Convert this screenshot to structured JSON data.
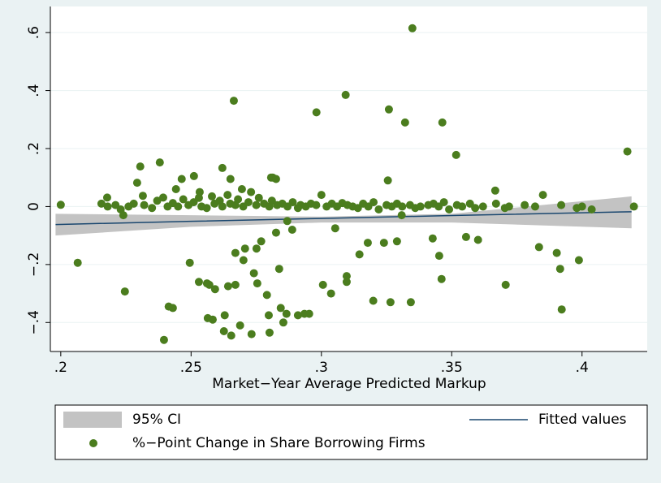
{
  "chart_data": {
    "type": "scatter",
    "x_label": "Market−Year Average Predicted Markup",
    "xlim": [
      0.196,
      0.425
    ],
    "ylim": [
      -0.5,
      0.69
    ],
    "xticks": [
      {
        "value": 0.2,
        "label": ".2"
      },
      {
        "value": 0.25,
        "label": ".25"
      },
      {
        "value": 0.3,
        "label": ".3"
      },
      {
        "value": 0.35,
        "label": ".35"
      },
      {
        "value": 0.4,
        "label": ".4"
      }
    ],
    "yticks": [
      {
        "value": -0.4,
        "label": "−.4"
      },
      {
        "value": -0.2,
        "label": "−.2"
      },
      0,
      {
        "value": 0.2,
        "label": ".2"
      },
      {
        "value": 0.4,
        "label": ".4"
      },
      {
        "value": 0.6,
        "label": ".6"
      }
    ],
    "grid": true,
    "series": [
      {
        "name": "95% CI",
        "kind": "band",
        "color": "#c3c3c3",
        "x": [
          0.198,
          0.25,
          0.3,
          0.35,
          0.419
        ],
        "lower": [
          -0.1,
          -0.07,
          -0.055,
          -0.055,
          -0.075
        ],
        "upper": [
          -0.025,
          -0.03,
          -0.035,
          -0.025,
          0.035
        ]
      },
      {
        "name": "Fitted values",
        "kind": "line",
        "color": "#1a476f",
        "x": [
          0.198,
          0.25,
          0.3,
          0.35,
          0.419
        ],
        "values": [
          -0.062,
          -0.051,
          -0.041,
          -0.031,
          -0.018
        ]
      },
      {
        "name": "%−Point Change in Share Borrowing Firms",
        "kind": "points",
        "color": "#4b7d1e",
        "x": [
          0.2,
          0.2065,
          0.2156,
          0.2178,
          0.2246,
          0.2293,
          0.2305,
          0.2315,
          0.238,
          0.2393,
          0.2396,
          0.2414,
          0.243,
          0.2442,
          0.2464,
          0.2495,
          0.2511,
          0.253,
          0.2533,
          0.2561,
          0.2564,
          0.257,
          0.2583,
          0.2592,
          0.262,
          0.2626,
          0.2629,
          0.2642,
          0.2651,
          0.2654,
          0.2664,
          0.267,
          0.267,
          0.2688,
          0.2695,
          0.2701,
          0.2707,
          0.2732,
          0.2741,
          0.2751,
          0.2754,
          0.2769,
          0.2791,
          0.2798,
          0.2801,
          0.2807,
          0.2813,
          0.2826,
          0.2826,
          0.2838,
          0.2844,
          0.2854,
          0.2866,
          0.2869,
          0.2888,
          0.291,
          0.2935,
          0.2953,
          0.2981,
          0.3006,
          0.3037,
          0.3053,
          0.3093,
          0.3097,
          0.3097,
          0.3146,
          0.3178,
          0.3199,
          0.324,
          0.3255,
          0.3259,
          0.3265,
          0.329,
          0.3308,
          0.3321,
          0.3343,
          0.3349,
          0.3427,
          0.3452,
          0.3461,
          0.3464,
          0.3517,
          0.3555,
          0.3601,
          0.3667,
          0.3704,
          0.3707,
          0.3835,
          0.3903,
          0.3916,
          0.3922,
          0.3988,
          0.4,
          0.4037,
          0.4174,
          0.4199,
          0.218,
          0.221,
          0.223,
          0.224,
          0.226,
          0.228,
          0.232,
          0.235,
          0.237,
          0.241,
          0.243,
          0.245,
          0.247,
          0.249,
          0.251,
          0.253,
          0.254,
          0.256,
          0.258,
          0.259,
          0.261,
          0.262,
          0.264,
          0.265,
          0.267,
          0.268,
          0.27,
          0.272,
          0.273,
          0.275,
          0.276,
          0.278,
          0.28,
          0.281,
          0.283,
          0.285,
          0.287,
          0.289,
          0.291,
          0.292,
          0.294,
          0.296,
          0.298,
          0.3,
          0.302,
          0.304,
          0.306,
          0.308,
          0.31,
          0.312,
          0.314,
          0.316,
          0.318,
          0.32,
          0.322,
          0.325,
          0.327,
          0.329,
          0.331,
          0.334,
          0.336,
          0.338,
          0.341,
          0.343,
          0.345,
          0.347,
          0.349,
          0.352,
          0.354,
          0.357,
          0.359,
          0.362,
          0.367,
          0.372,
          0.378,
          0.382,
          0.385,
          0.392,
          0.398
        ],
        "values": [
          0.006,
          -0.194,
          0.01,
          0.031,
          -0.293,
          0.082,
          0.138,
          0.037,
          0.152,
          0.031,
          -0.46,
          -0.345,
          -0.35,
          0.06,
          0.095,
          -0.194,
          0.105,
          -0.26,
          0.05,
          -0.265,
          -0.385,
          -0.27,
          -0.39,
          -0.285,
          0.133,
          -0.43,
          -0.375,
          -0.275,
          0.095,
          -0.445,
          0.365,
          -0.16,
          -0.27,
          -0.41,
          0.06,
          -0.185,
          -0.145,
          -0.44,
          -0.23,
          -0.145,
          -0.265,
          -0.12,
          -0.305,
          -0.375,
          -0.435,
          0.1,
          0.1,
          0.095,
          -0.09,
          -0.215,
          -0.35,
          -0.4,
          -0.37,
          -0.05,
          -0.08,
          -0.375,
          -0.37,
          -0.37,
          0.325,
          -0.27,
          -0.3,
          -0.075,
          0.385,
          -0.24,
          -0.26,
          -0.165,
          -0.125,
          -0.325,
          -0.125,
          0.09,
          0.335,
          -0.33,
          -0.12,
          -0.03,
          0.29,
          -0.33,
          0.615,
          -0.11,
          -0.17,
          -0.25,
          0.29,
          0.178,
          -0.105,
          -0.115,
          0.055,
          -0.005,
          -0.27,
          -0.14,
          -0.16,
          -0.215,
          -0.355,
          -0.185,
          0,
          -0.01,
          0.19,
          0,
          0,
          0.005,
          -0.01,
          -0.03,
          0,
          0.01,
          0.005,
          -0.005,
          0.02,
          0,
          0.012,
          0,
          0.025,
          0.005,
          0.015,
          0.03,
          0,
          -0.005,
          0.035,
          0.01,
          0.02,
          0,
          0.04,
          0.01,
          0.005,
          0.025,
          0,
          0.015,
          0.05,
          0.005,
          0.03,
          0.01,
          0,
          0.02,
          0.005,
          0.01,
          0,
          0.015,
          -0.005,
          0.005,
          0,
          0.01,
          0.005,
          0.04,
          0,
          0.01,
          0,
          0.012,
          0.005,
          0,
          -0.005,
          0.01,
          0,
          0.015,
          -0.01,
          0.005,
          0,
          0.01,
          0,
          0.005,
          -0.005,
          0,
          0.005,
          0.01,
          0,
          0.015,
          -0.01,
          0.005,
          0,
          0.01,
          -0.005,
          0,
          0.01,
          0,
          0.005,
          0,
          0.04,
          0.005,
          -0.005
        ]
      }
    ]
  }
}
